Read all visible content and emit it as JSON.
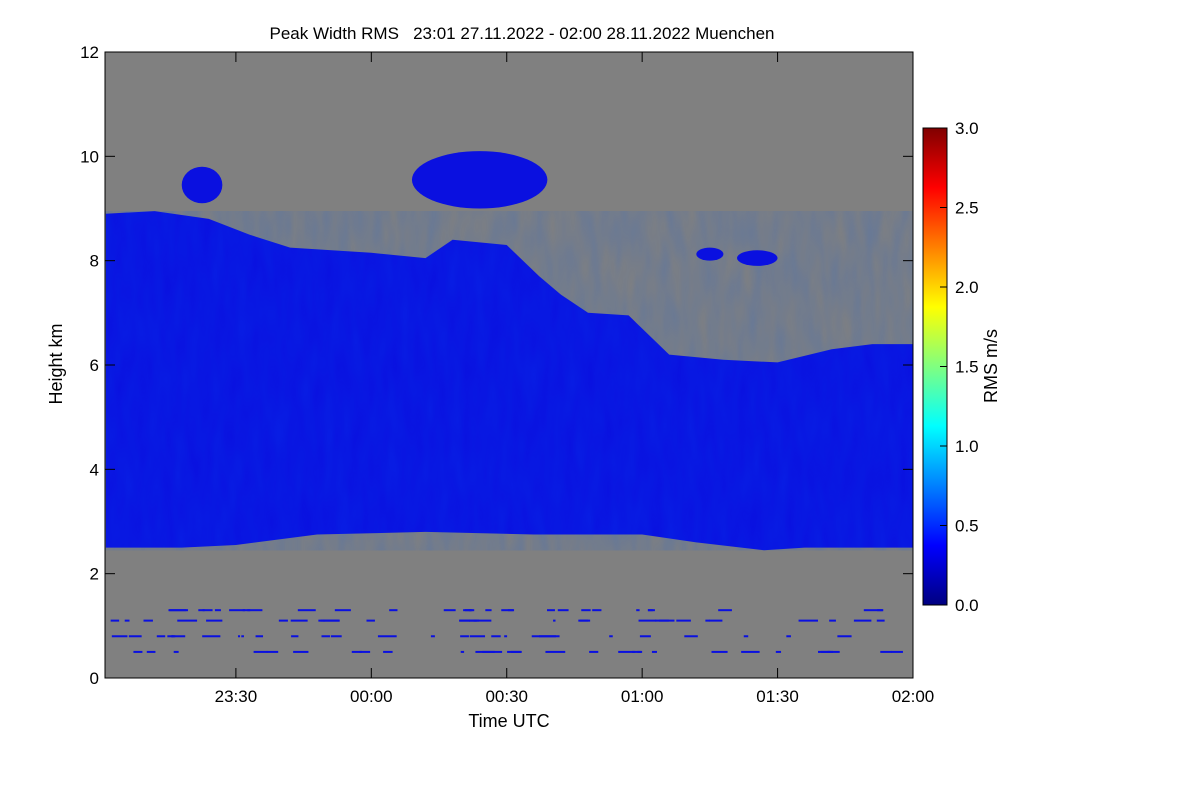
{
  "chart_data": {
    "type": "heatmap",
    "title": "Peak Width RMS   23:01 27.11.2022 - 02:00 28.11.2022 Muenchen",
    "xlabel": "Time UTC",
    "ylabel": "Height km",
    "x_range_hours": [
      23.0167,
      26.0
    ],
    "y_range_km": [
      0,
      12
    ],
    "x_ticks": [
      {
        "label": "23:30",
        "value": 23.5
      },
      {
        "label": "00:00",
        "value": 24.0
      },
      {
        "label": "00:30",
        "value": 24.5
      },
      {
        "label": "01:00",
        "value": 25.0
      },
      {
        "label": "01:30",
        "value": 25.5
      },
      {
        "label": "02:00",
        "value": 26.0
      }
    ],
    "y_ticks": [
      {
        "label": "0",
        "value": 0
      },
      {
        "label": "2",
        "value": 2
      },
      {
        "label": "4",
        "value": 4
      },
      {
        "label": "6",
        "value": 6
      },
      {
        "label": "8",
        "value": 8
      },
      {
        "label": "10",
        "value": 10
      },
      {
        "label": "12",
        "value": 12
      }
    ],
    "background_color": "#808080",
    "data_color": "#0a10e0",
    "cloud_top_km": [
      [
        23.02,
        8.9
      ],
      [
        23.2,
        8.95
      ],
      [
        23.4,
        8.8
      ],
      [
        23.55,
        8.5
      ],
      [
        23.7,
        8.25
      ],
      [
        24.0,
        8.15
      ],
      [
        24.2,
        8.05
      ],
      [
        24.3,
        8.4
      ],
      [
        24.5,
        8.3
      ],
      [
        24.62,
        7.7
      ],
      [
        24.7,
        7.35
      ],
      [
        24.8,
        7.0
      ],
      [
        24.95,
        6.95
      ],
      [
        25.1,
        6.2
      ],
      [
        25.3,
        6.1
      ],
      [
        25.5,
        6.05
      ],
      [
        25.7,
        6.3
      ],
      [
        25.85,
        6.4
      ],
      [
        26.0,
        6.4
      ]
    ],
    "cloud_base_km": [
      [
        23.02,
        2.5
      ],
      [
        23.3,
        2.5
      ],
      [
        23.5,
        2.55
      ],
      [
        23.8,
        2.75
      ],
      [
        24.2,
        2.8
      ],
      [
        24.6,
        2.75
      ],
      [
        25.0,
        2.75
      ],
      [
        25.2,
        2.6
      ],
      [
        25.45,
        2.45
      ],
      [
        25.6,
        2.5
      ],
      [
        26.0,
        2.5
      ]
    ],
    "cloud_patches_km": [
      {
        "x": [
          23.3,
          23.45
        ],
        "y": [
          9.1,
          9.8
        ]
      },
      {
        "x": [
          24.15,
          24.65
        ],
        "y": [
          9.0,
          10.1
        ]
      },
      {
        "x": [
          25.35,
          25.5
        ],
        "y": [
          7.9,
          8.2
        ]
      },
      {
        "x": [
          25.2,
          25.3
        ],
        "y": [
          8.0,
          8.25
        ]
      }
    ],
    "low_echo_heights_km": [
      1.3,
      1.1,
      0.8,
      0.5
    ],
    "colorbar": {
      "label": "RMS m/s",
      "min": 0.0,
      "max": 3.0,
      "ticks": [
        "0.0",
        "0.5",
        "1.0",
        "1.5",
        "2.0",
        "2.5",
        "3.0"
      ],
      "colors": [
        "#000080",
        "#0000ff",
        "#0080ff",
        "#00ffff",
        "#80ff80",
        "#ffff00",
        "#ff8000",
        "#ff0000",
        "#800000"
      ]
    }
  }
}
